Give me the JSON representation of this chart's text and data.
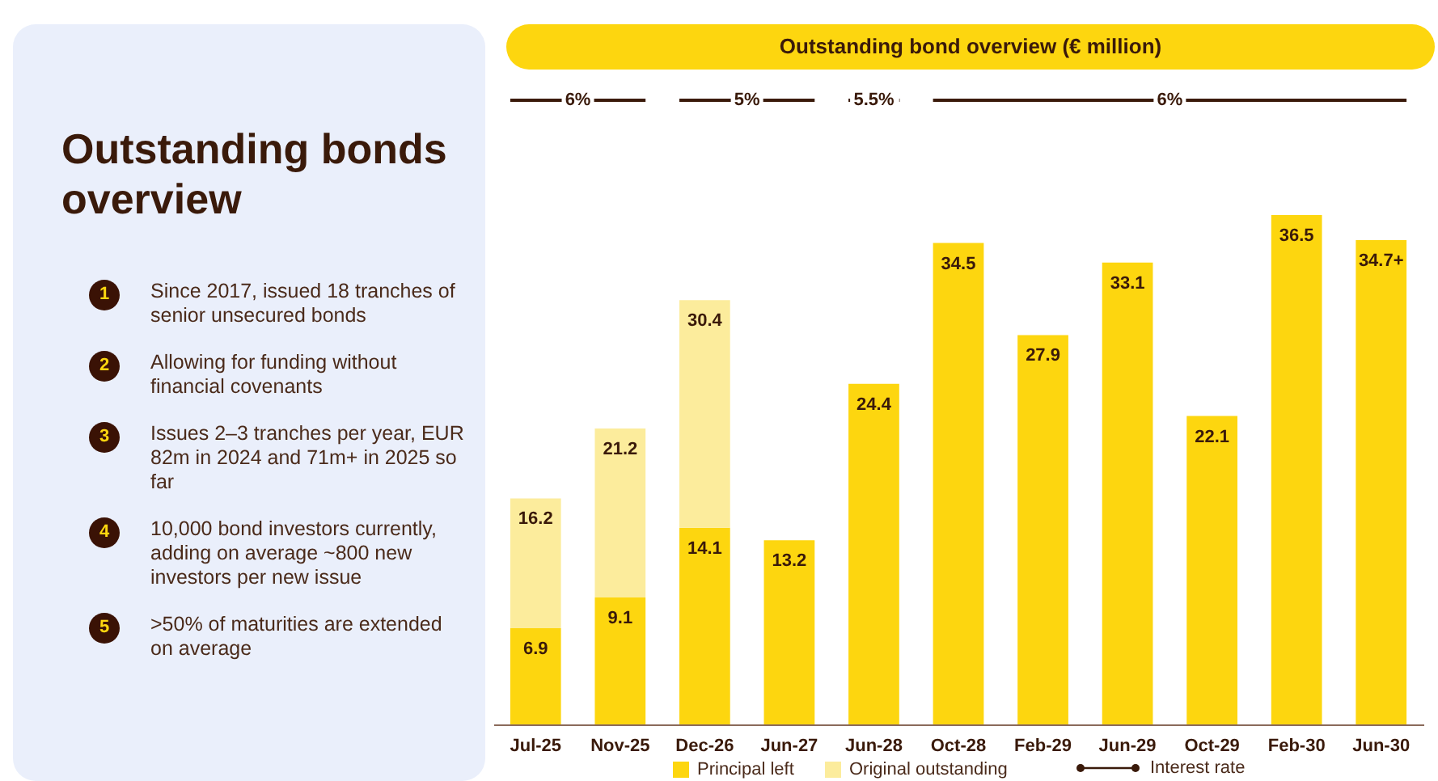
{
  "chart_data": [
    {
      "type": "other",
      "title": "Outstanding bonds overview",
      "annotations": [
        "1",
        "Since 2017, issued 18 tranches of senior unsecured bonds",
        "2",
        "Allowing for funding without financial covenants",
        "3",
        "Issues 2–3 tranches per year, EUR 82m in 2024 and 71m+ in 2025 so far",
        "4",
        "10,000 bond investors currently, adding on average ~800 new investors per new issue",
        "5",
        ">50% of maturities are extended on average"
      ]
    },
    {
      "type": "bar",
      "title": "Outstanding bond overview (€ million)",
      "stacked": true,
      "categories": [
        "Jul-25",
        "Nov-25",
        "Dec-26",
        "Jun-27",
        "Jun-28",
        "Oct-28",
        "Feb-29",
        "Jun-29",
        "Oct-29",
        "Feb-30",
        "Jun-30"
      ],
      "series": [
        {
          "name": "Principal left",
          "color": "#fdd60f",
          "values": [
            6.9,
            9.1,
            14.1,
            13.2,
            24.4,
            34.5,
            27.9,
            33.1,
            22.1,
            36.5,
            34.7
          ],
          "value_labels": [
            "6.9",
            "9.1",
            "14.1",
            "13.2",
            "24.4",
            "34.5",
            "27.9",
            "33.1",
            "22.1",
            "36.5",
            "34.7+"
          ]
        },
        {
          "name": "Original outstanding",
          "color": "#fcec9c",
          "values": [
            9.3,
            12.1,
            16.3,
            null,
            null,
            null,
            null,
            null,
            null,
            null,
            null
          ]
        }
      ],
      "totals": [
        "16.2",
        "21.2",
        "30.4",
        null,
        null,
        null,
        null,
        null,
        null,
        null,
        null
      ],
      "annotations": [
        "6%",
        "5%",
        "5.5%",
        "6%",
        "Interest rate"
      ],
      "legend": "bottom"
    }
  ]
}
